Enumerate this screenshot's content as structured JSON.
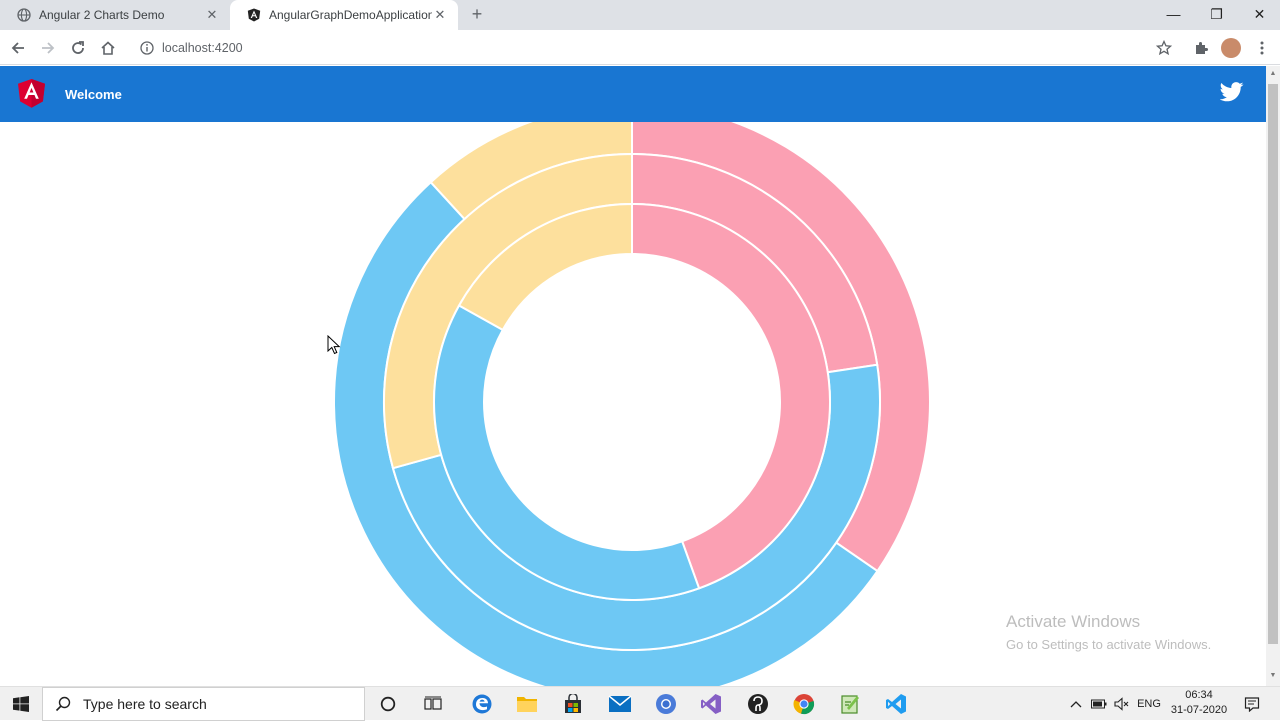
{
  "browser": {
    "tabs": [
      {
        "title": "Angular 2 Charts Demo",
        "active": false,
        "favicon": "globe-icon"
      },
      {
        "title": "AngularGraphDemoApplication",
        "active": true,
        "favicon": "angular-icon"
      }
    ],
    "url": "localhost:4200"
  },
  "app": {
    "welcome": "Welcome",
    "brand_color": "#1976d2"
  },
  "chart_data": {
    "type": "doughnut",
    "colors": [
      "#fba0b3",
      "#6ec8f4",
      "#fde09d"
    ],
    "rings": [
      {
        "ring": "outer",
        "values": [
          34.6,
          53.6,
          11.8
        ]
      },
      {
        "ring": "middle",
        "values": [
          22.6,
          48.1,
          29.3
        ]
      },
      {
        "ring": "inner",
        "values": [
          44.5,
          38.6,
          16.9
        ]
      }
    ]
  },
  "watermark": {
    "title": "Activate Windows",
    "subtitle": "Go to Settings to activate Windows."
  },
  "taskbar": {
    "search_placeholder": "Type here to search",
    "language": "ENG",
    "time": "06:34",
    "date": "31-07-2020"
  }
}
